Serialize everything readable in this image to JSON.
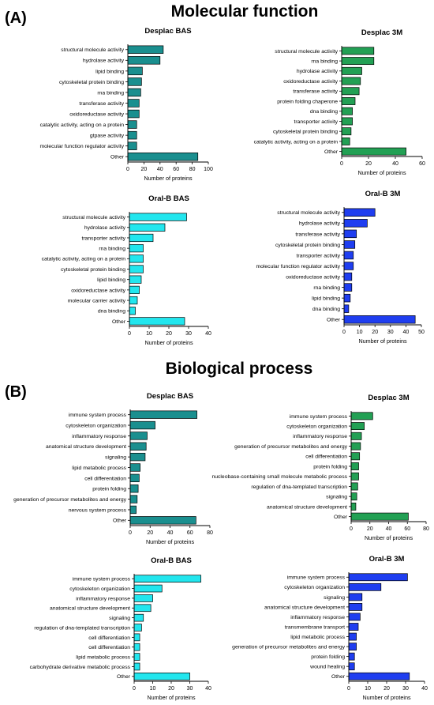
{
  "sections": {
    "A": {
      "letter": "(A)",
      "title": "Molecular function"
    },
    "B": {
      "letter": "(B)",
      "title": "Biological process"
    }
  },
  "colors": {
    "desplac_bas": "#1a8f8f",
    "desplac_3m": "#22a054",
    "oralb_bas": "#22e6ee",
    "oralb_3m": "#1f3ef0"
  },
  "chart_data": [
    {
      "type": "bar",
      "orientation": "horizontal",
      "section": "A",
      "title": "Desplac BAS",
      "xlabel": "Number of proteins",
      "xlim": [
        0,
        100
      ],
      "xticks": [
        0,
        20,
        40,
        60,
        80,
        100
      ],
      "color": "#1a8f8f",
      "categories": [
        "structural molecule activity",
        "hydrolase activity",
        "lipid binding",
        "cytoskeletal protein binding",
        "rna binding",
        "transferase activity",
        "oxidoreductase activity",
        "catalytic activity, acting on a protein",
        "gtpase activity",
        "molecular function regulator activity",
        "Other"
      ],
      "values": [
        44,
        40,
        18,
        17,
        16,
        14,
        14,
        11,
        11,
        11,
        87
      ]
    },
    {
      "type": "bar",
      "orientation": "horizontal",
      "section": "A",
      "title": "Desplac 3M",
      "xlabel": "Number of proteins",
      "xlim": [
        0,
        60
      ],
      "xticks": [
        0,
        20,
        40,
        60
      ],
      "color": "#22a054",
      "categories": [
        "structural molecule activity",
        "rna binding",
        "hydrolase activity",
        "oxidoreductase activity",
        "transferase activity",
        "protein folding chaperone",
        "dna binding",
        "transporter activity",
        "cytoskeletal protein binding",
        "catalytic activity, acting on a protein",
        "Other"
      ],
      "values": [
        24,
        24,
        15,
        14,
        13,
        10,
        8,
        8,
        7,
        6,
        48
      ]
    },
    {
      "type": "bar",
      "orientation": "horizontal",
      "section": "A",
      "title": "Oral-B BAS",
      "xlabel": "Number of proteins",
      "xlim": [
        0,
        40
      ],
      "xticks": [
        0,
        10,
        20,
        30,
        40
      ],
      "color": "#22e6ee",
      "categories": [
        "structural molecule activity",
        "hydrolase activity",
        "transporter activity",
        "rna binding",
        "catalytic activity, acting on a protein",
        "cytoskeletal protein binding",
        "lipid binding",
        "oxidoreductase activity",
        "molecular carrier activity",
        "dna binding",
        "Other"
      ],
      "values": [
        29,
        18,
        12,
        7,
        7,
        7,
        6,
        5,
        4,
        3,
        28
      ]
    },
    {
      "type": "bar",
      "orientation": "horizontal",
      "section": "A",
      "title": "Oral-B 3M",
      "xlabel": "Number of proteins",
      "xlim": [
        0,
        50
      ],
      "xticks": [
        0,
        10,
        20,
        30,
        40,
        50
      ],
      "color": "#1f3ef0",
      "categories": [
        "structural molecule activity",
        "hydrolase activity",
        "transferase activity",
        "cytoskeletal protein binding",
        "transporter activity",
        "molecular function regulator activity",
        "oxidoreductase activity",
        "rna binding",
        "lipid binding",
        "dna binding",
        "Other"
      ],
      "values": [
        20,
        15,
        8,
        7,
        6,
        6,
        5,
        5,
        4,
        3,
        46
      ]
    },
    {
      "type": "bar",
      "orientation": "horizontal",
      "section": "B",
      "title": "Desplac BAS",
      "xlabel": "Number of proteins",
      "xlim": [
        0,
        80
      ],
      "xticks": [
        0,
        20,
        40,
        60,
        80
      ],
      "color": "#1a8f8f",
      "categories": [
        "immune system process",
        "cytoskeleton organization",
        "inflammatory response",
        "anatomical structure development",
        "signaling",
        "lipid metabolic process",
        "cell differentiation",
        "protein folding",
        "generation of precursor metabolites and energy",
        "nervous system process",
        "Other"
      ],
      "values": [
        67,
        25,
        17,
        16,
        15,
        10,
        9,
        8,
        7,
        6,
        66
      ]
    },
    {
      "type": "bar",
      "orientation": "horizontal",
      "section": "B",
      "title": "Desplac 3M",
      "xlabel": "Number of proteins",
      "xlim": [
        0,
        80
      ],
      "xticks": [
        0,
        20,
        40,
        60,
        80
      ],
      "color": "#22a054",
      "categories": [
        "immune system process",
        "cytoskeleton organization",
        "inflammatory response",
        "generation of precursor metabolites and energy",
        "cell differentiation",
        "protein folding",
        "nucleobase-containing small molecule metabolic process",
        "regulation of dna-templated transcription",
        "signaling",
        "anatomical structure development",
        "Other"
      ],
      "values": [
        23,
        14,
        11,
        10,
        9,
        8,
        8,
        7,
        6,
        5,
        61
      ]
    },
    {
      "type": "bar",
      "orientation": "horizontal",
      "section": "B",
      "title": "Oral-B BAS",
      "xlabel": "Number of proteins",
      "xlim": [
        0,
        40
      ],
      "xticks": [
        0,
        10,
        20,
        30,
        40
      ],
      "color": "#22e6ee",
      "categories": [
        "immune system process",
        "cytoskeleton organization",
        "inflammatory response",
        "anatomical structure development",
        "signaling",
        "regulation of dna-templated transcription",
        "cell differentiation",
        "cell differentiation",
        "lipid metabolic process",
        "carbohydrate derivative metabolic process",
        "Other"
      ],
      "values": [
        36,
        15,
        10,
        9,
        5,
        4,
        3,
        3,
        3,
        3,
        30
      ]
    },
    {
      "type": "bar",
      "orientation": "horizontal",
      "section": "B",
      "title": "Oral-B 3M",
      "xlabel": "Number of proteins",
      "xlim": [
        0,
        40
      ],
      "xticks": [
        0,
        10,
        20,
        30,
        40
      ],
      "color": "#1f3ef0",
      "categories": [
        "immune system process",
        "cytoskeleton organization",
        "signaling",
        "anatomical structure development",
        "inflammatory response",
        "transmembrane transport",
        "lipid metabolic process",
        "generation of precursor metabolites and energy",
        "protein folding",
        "wound healing",
        "Other"
      ],
      "values": [
        31,
        17,
        7,
        7,
        6,
        5,
        4,
        4,
        3,
        3,
        32
      ]
    }
  ]
}
